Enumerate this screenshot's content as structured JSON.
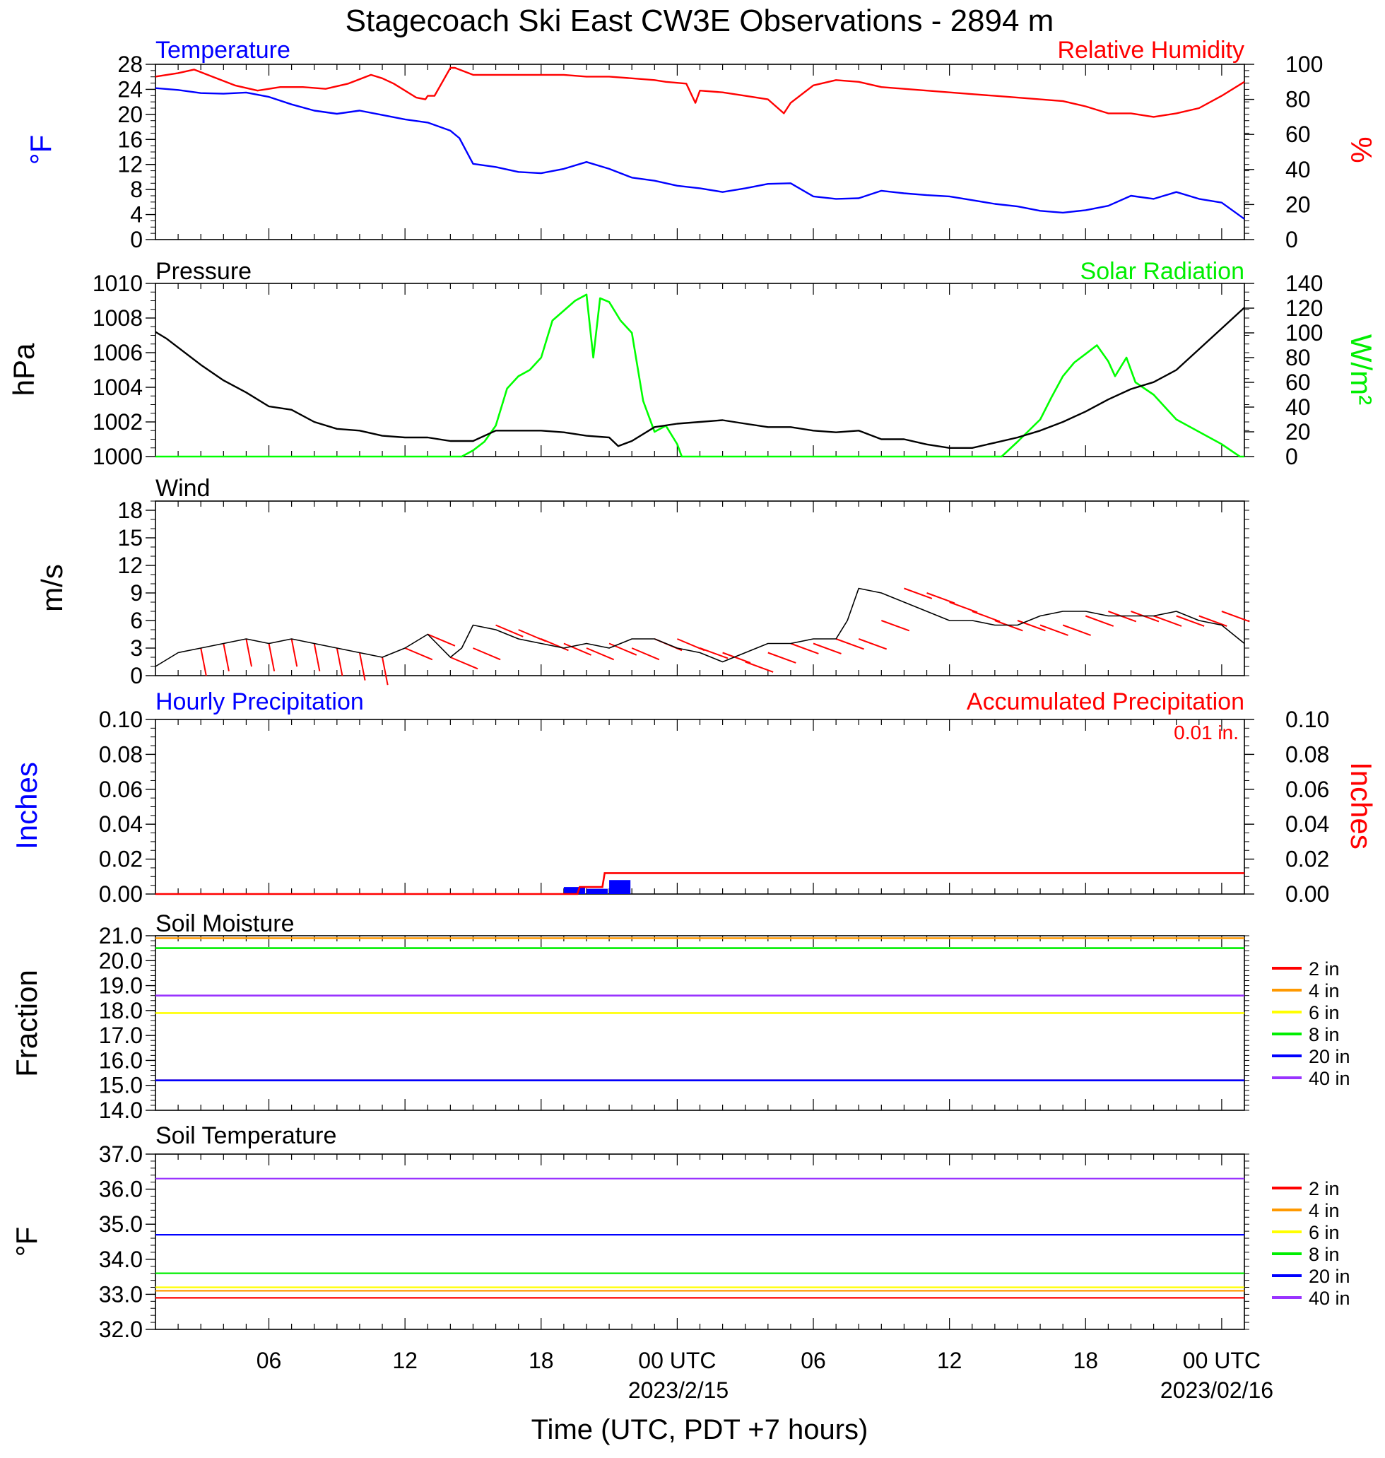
{
  "title": "Stagecoach Ski East CW3E Observations - 2894 m",
  "xaxis": {
    "title": "Time (UTC, PDT +7 hours)",
    "tick_labels": [
      "06",
      "12",
      "18",
      "00 UTC",
      "06",
      "12",
      "18",
      "00 UTC"
    ],
    "date_labels": [
      "2023/2/15",
      "2023/02/16"
    ]
  },
  "colors": {
    "temperature": "#0000ff",
    "humidity": "#ff0000",
    "pressure": "#000000",
    "solar": "#00ff00",
    "wind": "#000000",
    "wind_barbs": "#ff0000",
    "hourly_precip": "#0000ff",
    "accum_precip": "#ff0000",
    "depth_2in": "#ff0000",
    "depth_4in": "#ff9900",
    "depth_6in": "#ffff00",
    "depth_8in": "#00ee00",
    "depth_20in": "#0000ff",
    "depth_40in": "#9933ff"
  },
  "panels": {
    "temp_rh": {
      "left_title": "Temperature",
      "right_title": "Relative Humidity",
      "left_unit": "°F",
      "right_unit": "%",
      "left_ticks": [
        "0",
        "4",
        "8",
        "12",
        "16",
        "20",
        "24",
        "28"
      ],
      "right_ticks": [
        "0",
        "20",
        "40",
        "60",
        "80",
        "100"
      ]
    },
    "pressure": {
      "left_title": "Pressure",
      "right_title": "Solar Radiation",
      "left_unit": "hPa",
      "right_unit": "W/m²",
      "left_ticks": [
        "1000",
        "1002",
        "1004",
        "1006",
        "1008",
        "1010"
      ],
      "right_ticks": [
        "0",
        "20",
        "40",
        "60",
        "80",
        "100",
        "120",
        "140"
      ]
    },
    "wind": {
      "left_title": "Wind",
      "left_unit": "m/s",
      "left_ticks": [
        "0",
        "3",
        "6",
        "9",
        "12",
        "15",
        "18"
      ]
    },
    "precip": {
      "left_title": "Hourly Precipitation",
      "right_title": "Accumulated Precipitation",
      "total_label": "0.01 in.",
      "left_unit": "Inches",
      "right_unit": "Inches",
      "left_ticks": [
        "0.00",
        "0.02",
        "0.04",
        "0.06",
        "0.08",
        "0.10"
      ],
      "right_ticks": [
        "0.00",
        "0.02",
        "0.04",
        "0.06",
        "0.08",
        "0.10"
      ]
    },
    "soil_moisture": {
      "left_title": "Soil Moisture",
      "left_unit": "Fraction",
      "left_ticks": [
        "14.0",
        "15.0",
        "16.0",
        "17.0",
        "18.0",
        "19.0",
        "20.0",
        "21.0"
      ],
      "legend": [
        "2 in",
        "4 in",
        "6 in",
        "8 in",
        "20 in",
        "40 in"
      ]
    },
    "soil_temp": {
      "left_title": "Soil Temperature",
      "left_unit": "°F",
      "left_ticks": [
        "32.0",
        "33.0",
        "34.0",
        "35.0",
        "36.0",
        "37.0"
      ],
      "legend": [
        "2 in",
        "4 in",
        "6 in",
        "8 in",
        "20 in",
        "40 in"
      ]
    }
  },
  "chart_data": [
    {
      "type": "line",
      "title": "Temperature / Relative Humidity",
      "x_unit": "hours since 2023-02-14 01:00 UTC (approx)",
      "xlim": [
        0,
        48
      ],
      "series": [
        {
          "name": "Temperature",
          "axis": "left",
          "ylim": [
            0,
            28
          ],
          "x": [
            0,
            1,
            2,
            3,
            4,
            5,
            6,
            7,
            8,
            9,
            10,
            11,
            12,
            13,
            13.4,
            14,
            15,
            16,
            17,
            18,
            19,
            20,
            21,
            22,
            23,
            24,
            25,
            26,
            27,
            28,
            29,
            30,
            31,
            32,
            33,
            34,
            35,
            36,
            37,
            38,
            39,
            40,
            41,
            42,
            43,
            44,
            45,
            46,
            47,
            48
          ],
          "y": [
            24.2,
            23.9,
            23.4,
            23.3,
            23.5,
            22.8,
            21.6,
            20.6,
            20.1,
            20.6,
            19.9,
            19.2,
            18.7,
            17.4,
            16.2,
            12.1,
            11.6,
            10.8,
            10.6,
            11.3,
            12.4,
            11.3,
            9.9,
            9.4,
            8.6,
            8.2,
            7.6,
            8.2,
            8.9,
            9.0,
            6.9,
            6.5,
            6.6,
            7.8,
            7.4,
            7.1,
            6.9,
            6.3,
            5.7,
            5.3,
            4.6,
            4.3,
            4.7,
            5.4,
            7.0,
            6.5,
            7.6,
            6.5,
            5.9,
            3.3
          ]
        },
        {
          "name": "Relative Humidity",
          "axis": "right",
          "ylim": [
            0,
            100
          ],
          "x": [
            0,
            1,
            1.7,
            2.5,
            3.5,
            4.5,
            5.5,
            6.5,
            7.5,
            8.5,
            9.5,
            10,
            10.5,
            11.5,
            11.9,
            12,
            12.3,
            13,
            13.2,
            14,
            15,
            16,
            17,
            18,
            19,
            20,
            21,
            22,
            22.5,
            23.4,
            23.8,
            24,
            25,
            26,
            27,
            27.7,
            28,
            29,
            30,
            31,
            32,
            33,
            34,
            35,
            36,
            37,
            38,
            39,
            40,
            41,
            42,
            43,
            44,
            45,
            46,
            47,
            48
          ],
          "y": [
            93,
            95,
            97,
            93,
            88,
            85,
            87,
            87,
            86,
            89,
            94,
            92,
            89,
            81,
            80,
            82,
            82,
            98,
            98,
            94,
            94,
            94,
            94,
            94,
            93,
            93,
            92,
            91,
            90,
            89,
            78,
            85,
            84,
            82,
            80,
            72,
            78,
            88,
            91,
            90,
            87,
            86,
            85,
            84,
            83,
            82,
            81,
            80,
            79,
            76,
            72,
            72,
            70,
            72,
            75,
            82,
            90
          ]
        }
      ]
    },
    {
      "type": "line",
      "title": "Pressure / Solar Radiation",
      "xlim": [
        0,
        48
      ],
      "series": [
        {
          "name": "Pressure",
          "axis": "left",
          "ylim": [
            1000,
            1010
          ],
          "x": [
            0,
            0.5,
            1,
            2,
            3,
            4,
            5,
            6,
            7,
            8,
            9,
            10,
            11,
            12,
            13,
            14,
            15,
            16,
            17,
            18,
            19,
            20,
            20.4,
            21,
            22,
            23,
            24,
            25,
            26,
            27,
            28,
            29,
            30,
            31,
            32,
            33,
            34,
            35,
            36,
            37,
            38,
            39,
            40,
            41,
            42,
            43,
            44,
            45,
            46,
            47,
            48
          ],
          "y": [
            1007.2,
            1006.8,
            1006.3,
            1005.3,
            1004.4,
            1003.7,
            1002.9,
            1002.7,
            1002.0,
            1001.6,
            1001.5,
            1001.2,
            1001.1,
            1001.1,
            1000.9,
            1000.9,
            1001.5,
            1001.5,
            1001.5,
            1001.4,
            1001.2,
            1001.1,
            1000.6,
            1000.9,
            1001.7,
            1001.9,
            1002.0,
            1002.1,
            1001.9,
            1001.7,
            1001.7,
            1001.5,
            1001.4,
            1001.5,
            1001.0,
            1001.0,
            1000.7,
            1000.5,
            1000.5,
            1000.8,
            1001.1,
            1001.5,
            1002.0,
            1002.6,
            1003.3,
            1003.9,
            1004.3,
            1005.0,
            1006.2,
            1007.4,
            1008.6
          ]
        },
        {
          "name": "Solar Radiation",
          "axis": "right",
          "ylim": [
            0,
            140
          ],
          "x": [
            0,
            13.5,
            14,
            14.5,
            15,
            15.5,
            16,
            16.5,
            17,
            17.5,
            18,
            18.5,
            19,
            19.3,
            19.6,
            20,
            20.5,
            21,
            21.5,
            22,
            22.5,
            23,
            23.2,
            37.3,
            38,
            39,
            39.5,
            40,
            40.5,
            41,
            41.5,
            42,
            42.3,
            42.8,
            43.2,
            44,
            44.5,
            45,
            46,
            47,
            47.8,
            48
          ],
          "y": [
            0,
            0,
            5,
            12,
            25,
            55,
            65,
            70,
            80,
            110,
            118,
            126,
            131,
            80,
            128,
            125,
            110,
            100,
            45,
            20,
            25,
            10,
            0,
            0,
            12,
            30,
            48,
            65,
            76,
            83,
            90,
            77,
            65,
            80,
            60,
            50,
            40,
            30,
            20,
            10,
            0,
            0
          ]
        }
      ]
    },
    {
      "type": "line",
      "title": "Wind",
      "xlim": [
        0,
        48
      ],
      "series": [
        {
          "name": "Wind",
          "axis": "left",
          "ylim": [
            0,
            19
          ],
          "x": [
            0,
            1,
            2,
            3,
            4,
            5,
            6,
            7,
            8,
            9,
            10,
            11,
            12,
            13,
            13.5,
            14,
            15,
            16,
            17,
            18,
            19,
            20,
            21,
            22,
            23,
            24,
            25,
            26,
            27,
            28,
            29,
            30,
            30.5,
            31,
            32,
            33,
            34,
            35,
            36,
            37,
            38,
            39,
            40,
            41,
            42,
            43,
            44,
            45,
            46,
            47,
            48
          ],
          "y": [
            1.0,
            2.5,
            3.0,
            3.5,
            4.0,
            3.5,
            4.0,
            3.5,
            3.0,
            2.5,
            2.0,
            3.0,
            4.5,
            2.0,
            3.0,
            5.5,
            5.0,
            4.0,
            3.5,
            3.0,
            3.5,
            3.0,
            4.0,
            4.0,
            3.0,
            2.5,
            1.5,
            2.5,
            3.5,
            3.5,
            4.0,
            4.0,
            6.0,
            9.5,
            9.0,
            8.0,
            7.0,
            6.0,
            6.0,
            5.5,
            5.5,
            6.5,
            7.0,
            7.0,
            6.5,
            6.5,
            6.5,
            7.0,
            6.0,
            5.5,
            3.5
          ]
        }
      ]
    },
    {
      "type": "bar",
      "title": "Hourly / Accumulated Precipitation",
      "xlim": [
        0,
        48
      ],
      "hourly": {
        "name": "Hourly Precipitation",
        "axis": "left",
        "ylim": [
          0,
          0.1
        ],
        "x": [
          18,
          19,
          20
        ],
        "values": [
          0.004,
          0.003,
          0.008
        ]
      },
      "accumulated": {
        "name": "Accumulated Precipitation",
        "axis": "right",
        "ylim": [
          0,
          0.1
        ],
        "x": [
          0,
          18.6,
          18.7,
          19.7,
          19.8,
          48
        ],
        "values": [
          0,
          0,
          0.004,
          0.004,
          0.012,
          0.012
        ]
      }
    },
    {
      "type": "line",
      "title": "Soil Moisture",
      "xlim": [
        0,
        48
      ],
      "ylim": [
        14,
        21
      ],
      "series": [
        {
          "name": "2 in",
          "x": [
            0,
            48
          ],
          "y": [
            15.2,
            15.2
          ]
        },
        {
          "name": "4 in",
          "x": [
            0,
            48
          ],
          "y": [
            20.9,
            20.9
          ]
        },
        {
          "name": "6 in",
          "x": [
            0,
            48
          ],
          "y": [
            17.9,
            17.9
          ]
        },
        {
          "name": "8 in",
          "x": [
            0,
            48
          ],
          "y": [
            20.5,
            20.5
          ]
        },
        {
          "name": "20 in",
          "x": [
            0,
            48
          ],
          "y": [
            15.2,
            15.2
          ]
        },
        {
          "name": "40 in",
          "x": [
            0,
            48
          ],
          "y": [
            18.6,
            18.6
          ]
        }
      ]
    },
    {
      "type": "line",
      "title": "Soil Temperature",
      "xlim": [
        0,
        48
      ],
      "ylim": [
        32,
        37
      ],
      "series": [
        {
          "name": "2 in",
          "x": [
            0,
            48
          ],
          "y": [
            32.9,
            32.9
          ]
        },
        {
          "name": "4 in",
          "x": [
            0,
            48
          ],
          "y": [
            33.1,
            33.1
          ]
        },
        {
          "name": "6 in",
          "x": [
            0,
            48
          ],
          "y": [
            33.2,
            33.2
          ]
        },
        {
          "name": "8 in",
          "x": [
            0,
            48
          ],
          "y": [
            33.6,
            33.6
          ]
        },
        {
          "name": "20 in",
          "x": [
            0,
            48
          ],
          "y": [
            34.7,
            34.7
          ]
        },
        {
          "name": "40 in",
          "x": [
            0,
            48
          ],
          "y": [
            36.3,
            36.3
          ]
        }
      ]
    }
  ]
}
